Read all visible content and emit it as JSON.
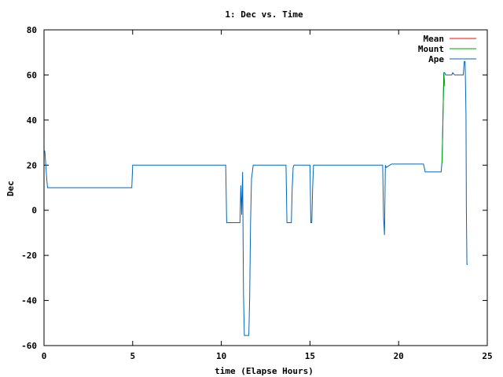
{
  "chart_data": {
    "type": "line",
    "title": "1: Dec vs. Time",
    "xlabel": "time (Elapse Hours)",
    "ylabel": "Dec",
    "xlim": [
      0,
      25
    ],
    "ylim": [
      -60,
      80
    ],
    "xticks": [
      0,
      5,
      10,
      15,
      20,
      25
    ],
    "yticks": [
      -60,
      -40,
      -20,
      0,
      20,
      40,
      60,
      80
    ],
    "grid": false,
    "legend_position": "top-right",
    "series": [
      {
        "name": "Mean",
        "color": "#ff0000",
        "x": [],
        "y": []
      },
      {
        "name": "Mount",
        "color": "#00a000",
        "x": [
          22.45,
          22.5,
          22.55,
          22.6
        ],
        "y": [
          21,
          40,
          61,
          55
        ]
      },
      {
        "name": "Ape",
        "color": "#0066bb",
        "x": [
          0,
          0.05,
          0.1,
          0.15,
          0.2,
          4.95,
          5.0,
          5.05,
          10.25,
          10.3,
          11.05,
          11.1,
          11.15,
          11.2,
          11.25,
          11.3,
          11.35,
          11.55,
          11.6,
          11.65,
          11.7,
          11.8,
          13.65,
          13.7,
          13.95,
          14.0,
          14.05,
          14.1,
          15.0,
          15.05,
          15.1,
          15.15,
          15.2,
          19.1,
          19.15,
          19.2,
          19.25,
          19.3,
          19.5,
          19.6,
          21.4,
          21.5,
          22.4,
          22.45,
          22.5,
          22.55,
          22.6,
          22.65,
          23.0,
          23.05,
          23.15,
          23.2,
          23.65,
          23.7,
          23.75,
          23.8,
          23.82,
          23.85,
          23.9
        ],
        "y": [
          27,
          26,
          20,
          14,
          10,
          10,
          20,
          20,
          20,
          -5.5,
          -5.5,
          11,
          -2,
          17,
          -37,
          -55.5,
          -55.5,
          -55.5,
          -38,
          -5.5,
          14,
          20,
          20,
          -5.5,
          -5.5,
          10,
          19,
          20,
          20,
          -5.5,
          -5.5,
          10,
          20,
          20,
          -3,
          -11,
          20,
          19,
          20,
          20.5,
          20.5,
          17,
          17,
          22,
          41,
          61,
          61,
          60,
          60,
          61,
          60,
          60,
          60,
          66,
          66,
          43,
          0,
          -24,
          -24
        ]
      }
    ]
  }
}
